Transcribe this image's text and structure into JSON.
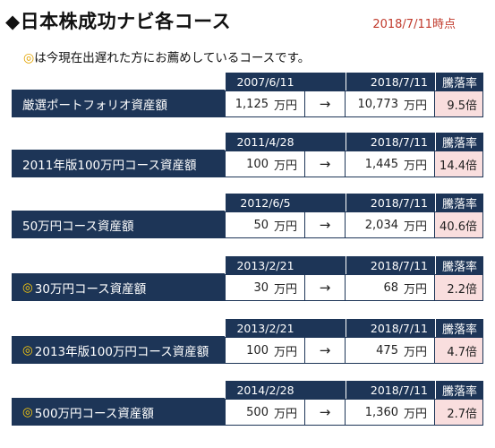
{
  "header": {
    "title": "◆日本株成功ナビ各コース",
    "as_of": "2018/7/11時点"
  },
  "note": {
    "symbol": "◎",
    "text": "は今現在出遅れた方にお薦めしているコースです。"
  },
  "columns": {
    "rate_header": "騰落率",
    "arrow": "→",
    "unit": "万円"
  },
  "courses": [
    {
      "recommended": false,
      "name": "厳選ポートフォリオ資産額",
      "start_date": "2007/6/11",
      "end_date": "2018/7/11",
      "start_amount": "1,125",
      "end_amount": "10,773",
      "rate": "9.5倍"
    },
    {
      "recommended": false,
      "name": "2011年版100万円コース資産額",
      "start_date": "2011/4/28",
      "end_date": "2018/7/11",
      "start_amount": "100",
      "end_amount": "1,445",
      "rate": "14.4倍"
    },
    {
      "recommended": false,
      "name": "50万円コース資産額",
      "start_date": "2012/6/5",
      "end_date": "2018/7/11",
      "start_amount": "50",
      "end_amount": "2,034",
      "rate": "40.6倍"
    },
    {
      "recommended": true,
      "name": "30万円コース資産額",
      "start_date": "2013/2/21",
      "end_date": "2018/7/11",
      "start_amount": "30",
      "end_amount": "68",
      "rate": "2.2倍"
    },
    {
      "recommended": true,
      "name": "2013年版100万円コース資産額",
      "start_date": "2013/2/21",
      "end_date": "2018/7/11",
      "start_amount": "100",
      "end_amount": "475",
      "rate": "4.7倍"
    },
    {
      "recommended": true,
      "name": "500万円コース資産額",
      "start_date": "2014/2/28",
      "end_date": "2018/7/11",
      "start_amount": "500",
      "end_amount": "1,360",
      "rate": "2.7倍"
    }
  ]
}
